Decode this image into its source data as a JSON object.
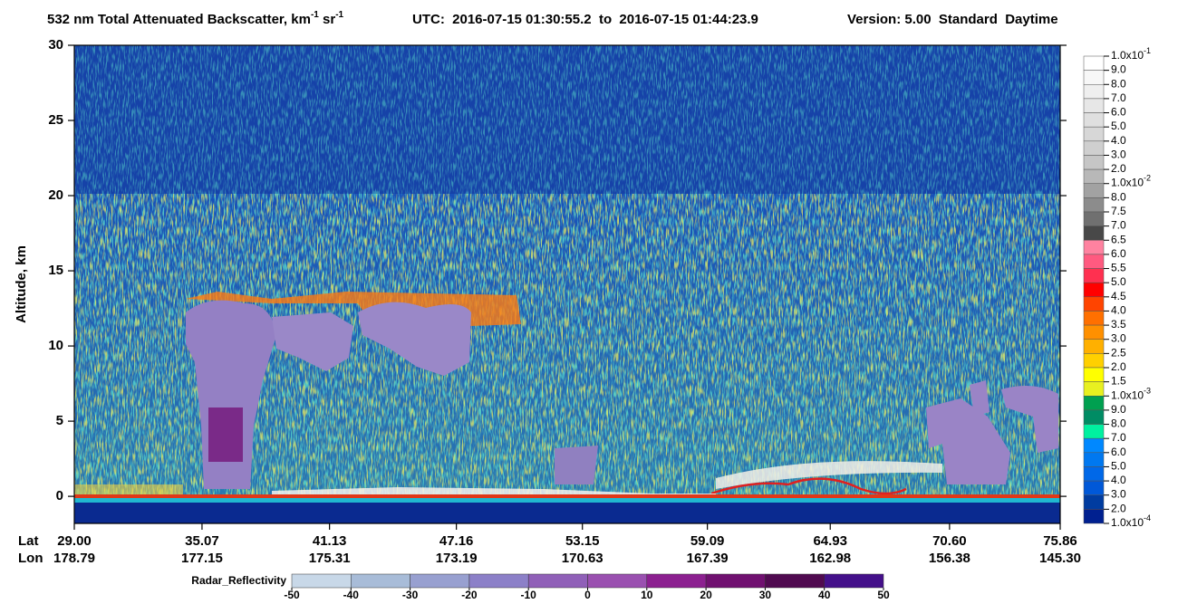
{
  "chart_data": {
    "type": "curtain",
    "title_parts": [
      "532 nm Total Attenuated Backscatter, km",
      "-1",
      " sr",
      "-1"
    ],
    "utc": "UTC:  2016-07-15 01:30:55.2  to  2016-07-15 01:44:23.9",
    "version": "Version: 5.00  Standard  Daytime",
    "ylabel": "Altitude, km",
    "ylim": [
      -1.8,
      30
    ],
    "yticks": [
      0,
      5,
      10,
      15,
      20,
      25,
      30
    ],
    "xlim": [
      29,
      75.86
    ],
    "lat_label": "Lat",
    "lon_label": "Lon",
    "xticks": [
      {
        "value": 29,
        "label": "29.00"
      },
      35.07,
      41.13,
      47.16,
      53.15,
      59.09,
      64.93,
      {
        "value": 70.6,
        "label": "70.60"
      },
      75.86
    ],
    "lon": [
      "178.79",
      "177.15",
      "175.31",
      "173.19",
      "170.63",
      "167.39",
      "162.98",
      "156.38",
      "145.30"
    ],
    "colorbar": {
      "labels": [
        {
          "text": "1.0x10",
          "sup": "-1"
        },
        {
          "text": "9.0"
        },
        {
          "text": "8.0"
        },
        {
          "text": "7.0"
        },
        {
          "text": "6.0"
        },
        {
          "text": "5.0"
        },
        {
          "text": "4.0"
        },
        {
          "text": "3.0"
        },
        {
          "text": "2.0"
        },
        {
          "text": "1.0x10",
          "sup": "-2"
        },
        {
          "text": "8.0"
        },
        {
          "text": "7.5"
        },
        {
          "text": "7.0"
        },
        {
          "text": "6.5"
        },
        {
          "text": "6.0"
        },
        {
          "text": "5.5"
        },
        {
          "text": "5.0"
        },
        {
          "text": "4.5"
        },
        {
          "text": "4.0"
        },
        {
          "text": "3.5"
        },
        {
          "text": "3.0"
        },
        {
          "text": "2.5"
        },
        {
          "text": "2.0"
        },
        {
          "text": "1.5"
        },
        {
          "text": "1.0x10",
          "sup": "-3"
        },
        {
          "text": "9.0"
        },
        {
          "text": "8.0"
        },
        {
          "text": "7.0"
        },
        {
          "text": "6.0"
        },
        {
          "text": "5.0"
        },
        {
          "text": "4.0"
        },
        {
          "text": "3.0"
        },
        {
          "text": "2.0"
        },
        {
          "text": "1.0x10",
          "sup": "-4"
        }
      ],
      "colors": [
        "#ffffff",
        "#f7f7f7",
        "#efefef",
        "#e7e7e7",
        "#dfdfdf",
        "#d7d7d7",
        "#cfcfcf",
        "#c6c6c6",
        "#b8b8b8",
        "#a2a2a2",
        "#8c8c8c",
        "#707070",
        "#484848",
        "#ff82a0",
        "#ff5a80",
        "#ff3050",
        "#ff0000",
        "#ff4400",
        "#ff7000",
        "#ff9000",
        "#ffb000",
        "#ffd000",
        "#ffff00",
        "#e8f020",
        "#00a050",
        "#008c64",
        "#00f0a0",
        "#0088ff",
        "#0078f0",
        "#0068e8",
        "#0058d8",
        "#003ca0",
        "#002090"
      ]
    },
    "radar": {
      "label": "Radar_Reflectivity",
      "lim": [
        -50,
        50
      ],
      "ticks": [
        -50,
        -40,
        -30,
        -20,
        -10,
        0,
        10,
        20,
        30,
        40,
        50
      ],
      "colors": [
        "#c8d8e8",
        "#a8bcd8",
        "#98a0d0",
        "#8c80c8",
        "#9060b8",
        "#9a50b0",
        "#8c2090",
        "#701070",
        "#500a50",
        "#44108a"
      ]
    }
  }
}
